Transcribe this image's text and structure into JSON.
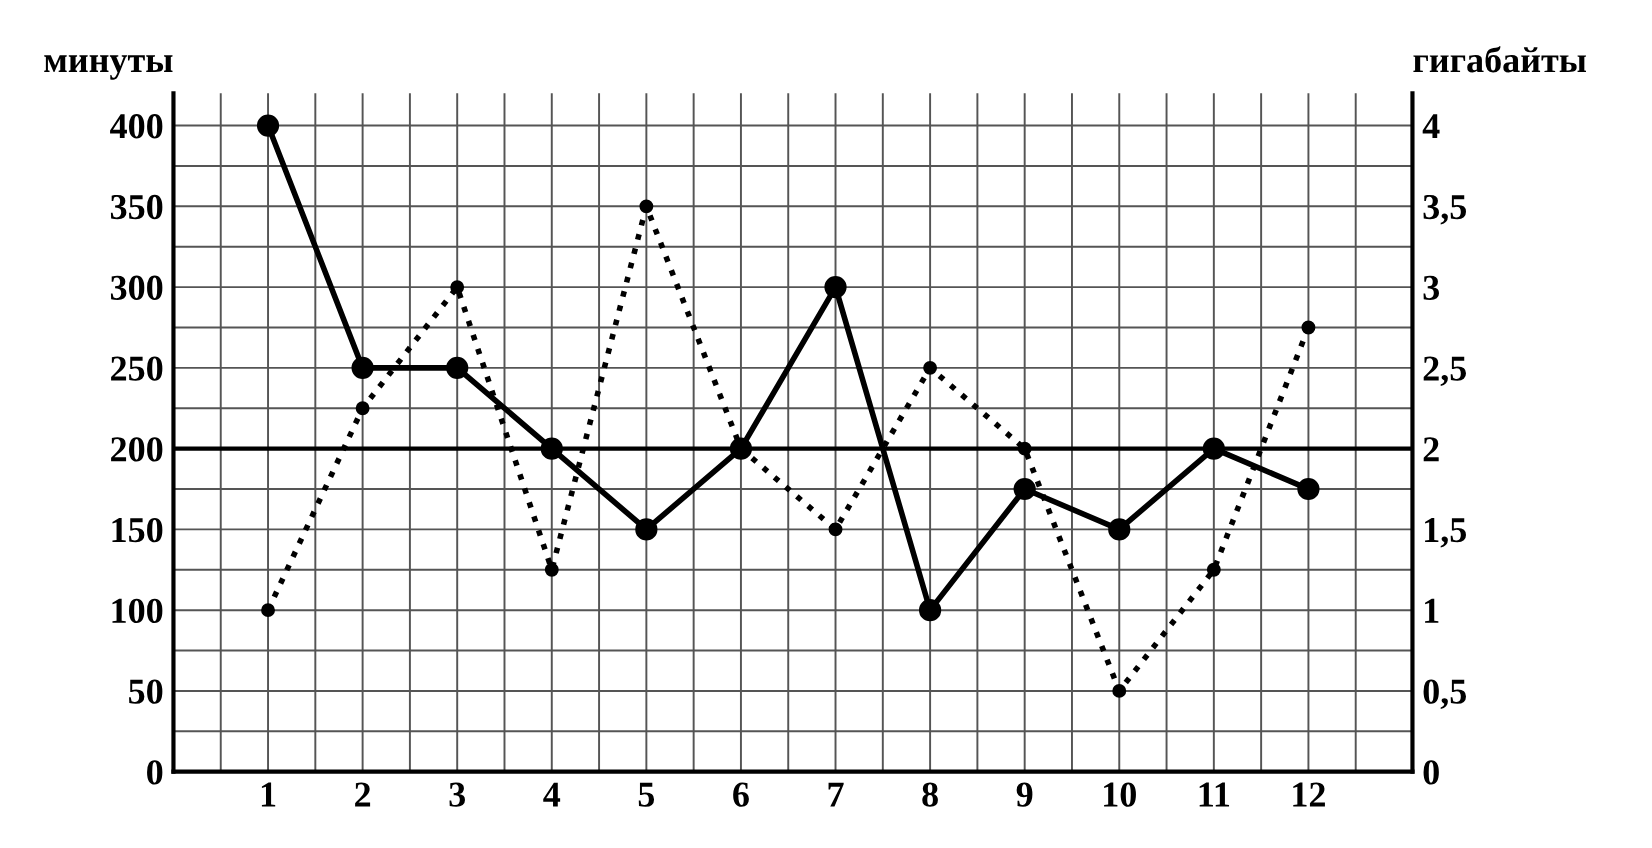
{
  "chart_data": {
    "type": "line",
    "ylabel": "минуты",
    "y2label": "гигабайты",
    "x": [
      1,
      2,
      3,
      4,
      5,
      6,
      7,
      8,
      9,
      10,
      11,
      12
    ],
    "xlim": [
      0,
      13.1
    ],
    "xticks": [
      1,
      2,
      3,
      4,
      5,
      6,
      7,
      8,
      9,
      10,
      11,
      12,
      {
        "value": 0.5,
        "label": null
      },
      {
        "value": 1.5,
        "label": null
      },
      {
        "value": 2.5,
        "label": null
      },
      {
        "value": 3.5,
        "label": null
      },
      {
        "value": 4.5,
        "label": null
      },
      {
        "value": 5.5,
        "label": null
      },
      {
        "value": 6.5,
        "label": null
      },
      {
        "value": 7.5,
        "label": null
      },
      {
        "value": 8.5,
        "label": null
      },
      {
        "value": 9.5,
        "label": null
      },
      {
        "value": 10.5,
        "label": null
      },
      {
        "value": 11.5,
        "label": null
      },
      {
        "value": 12.5,
        "label": null
      }
    ],
    "ylim": [
      0,
      420
    ],
    "yticks": [
      0,
      50,
      100,
      150,
      200,
      250,
      300,
      350,
      400,
      {
        "value": 25,
        "label": null
      },
      {
        "value": 75,
        "label": null
      },
      {
        "value": 125,
        "label": null
      },
      {
        "value": 175,
        "label": null
      },
      {
        "value": 225,
        "label": null
      },
      {
        "value": 275,
        "label": null
      },
      {
        "value": 325,
        "label": null
      },
      {
        "value": 375,
        "label": null
      }
    ],
    "y2lim": [
      0,
      4.2
    ],
    "y2ticks": [
      0,
      {
        "value": 0.5,
        "label": "0,5"
      },
      1,
      {
        "value": 1.5,
        "label": "1,5"
      },
      2,
      {
        "value": 2.5,
        "label": "2,5"
      },
      3,
      {
        "value": 3.5,
        "label": "3,5"
      },
      4
    ],
    "grid": true,
    "legend": false,
    "marker": "circle",
    "ref_lines": [
      {
        "axis": "y",
        "value": 200
      }
    ],
    "series": [
      {
        "color": "#000000",
        "line_style": "solid",
        "values": [
          400,
          250,
          250,
          200,
          150,
          200,
          300,
          100,
          175,
          150,
          200,
          175
        ]
      },
      {
        "color": "#000000",
        "line_style": "dotted",
        "axis": "y2",
        "values": [
          1,
          2.25,
          3,
          1.25,
          3.5,
          2,
          1.5,
          2.5,
          2,
          0.5,
          1.25,
          2.75
        ]
      }
    ]
  }
}
